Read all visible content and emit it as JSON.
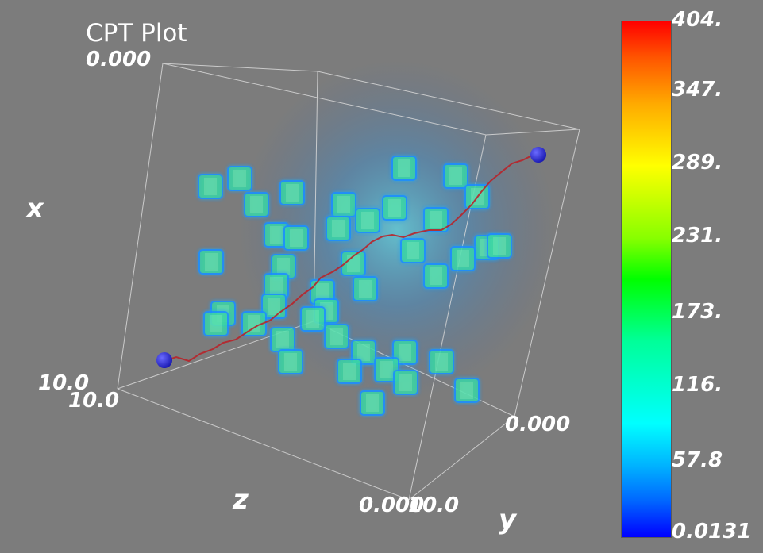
{
  "title": "CPT Plot",
  "axes": {
    "x": {
      "name": "x",
      "min_label": "0.000"
    },
    "z": {
      "name": "z",
      "max_label_1": "10.0",
      "max_label_2": "10.0"
    },
    "y": {
      "name": "y",
      "min_label_1": "0.000",
      "min_label_2": "0.000",
      "max_label": "10.0"
    }
  },
  "colorbar": {
    "ticks": [
      "404.",
      "347.",
      "289.",
      "231.",
      "173.",
      "116.",
      "57.8",
      "0.0131"
    ],
    "colors": {
      "high": "#ff0000",
      "mid": "#00ff00",
      "low": "#0000ff"
    }
  },
  "scene_colors": {
    "background": "#7c7c7c",
    "cube_face": "#39d4a2",
    "cube_glow": "#1f8fff",
    "path": "#b8242a",
    "endpoint": "#2222cc",
    "cloud": "#3aa0d8"
  }
}
